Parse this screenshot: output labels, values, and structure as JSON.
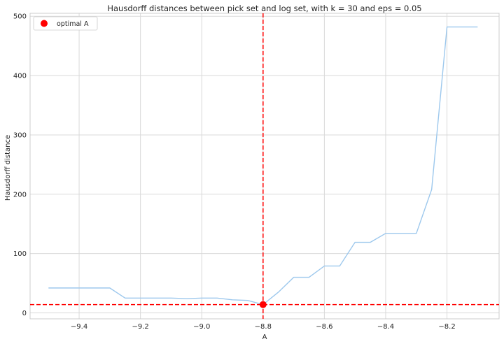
{
  "chart_data": {
    "type": "line",
    "title": "Hausdorff distances between pick set and log set, with k = 30 and eps = 0.05",
    "xlabel": "A",
    "ylabel": "Hausdorff distance",
    "xlim": [
      -9.56,
      -8.03
    ],
    "ylim": [
      -10,
      505
    ],
    "grid": true,
    "x_ticks": [
      -9.4,
      -9.2,
      -9.0,
      -8.8,
      -8.6,
      -8.4,
      -8.2
    ],
    "x_tick_labels": [
      "−9.4",
      "−9.2",
      "−9.0",
      "−8.8",
      "−8.6",
      "−8.4",
      "−8.2"
    ],
    "y_ticks": [
      0,
      100,
      200,
      300,
      400,
      500
    ],
    "y_tick_labels": [
      "0",
      "100",
      "200",
      "300",
      "400",
      "500"
    ],
    "series": [
      {
        "x": [
          -9.5,
          -9.45,
          -9.4,
          -9.35,
          -9.3,
          -9.25,
          -9.2,
          -9.15,
          -9.1,
          -9.05,
          -9.0,
          -8.95,
          -8.9,
          -8.85,
          -8.8,
          -8.75,
          -8.7,
          -8.65,
          -8.6,
          -8.55,
          -8.5,
          -8.45,
          -8.4,
          -8.35,
          -8.3,
          -8.25,
          -8.2,
          -8.15,
          -8.1
        ],
        "values": [
          42,
          42,
          42,
          42,
          42,
          25,
          25,
          25,
          25,
          24,
          25,
          25,
          22,
          21,
          14,
          35,
          60,
          60,
          79,
          79,
          119,
          119,
          134,
          134,
          134,
          208,
          482,
          482,
          482
        ],
        "color": "#9dc8ed"
      }
    ],
    "optimal_point": {
      "x": -8.8,
      "y": 14
    },
    "legend": {
      "position": "top-left",
      "entries": [
        "optimal A"
      ]
    },
    "colors": {
      "line": "#9dc8ed",
      "optimal": "#ff0000",
      "grid": "#d9d9d9",
      "axes": "#cccccc"
    }
  }
}
